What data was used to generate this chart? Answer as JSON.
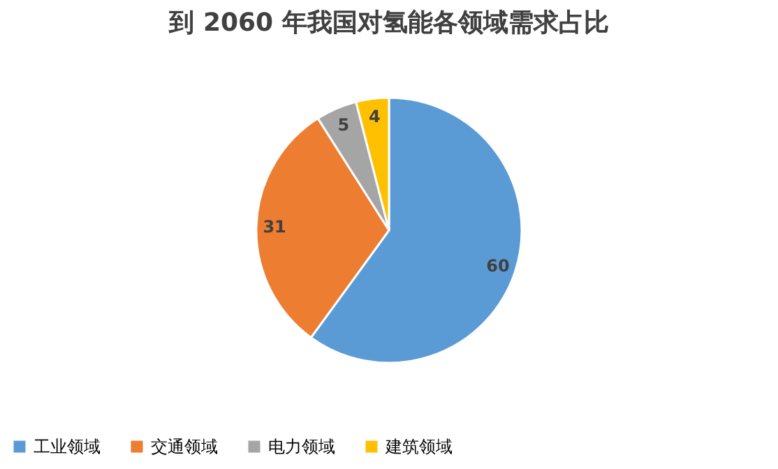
{
  "chart_data": {
    "type": "pie",
    "title": "到 2060 年我国对氢能各领域需求占比",
    "categories": [
      "工业领域",
      "交通领域",
      "电力领域",
      "建筑领域"
    ],
    "values": [
      60,
      31,
      5,
      4
    ],
    "colors": [
      "#5b9bd5",
      "#ed7d31",
      "#a5a5a5",
      "#ffc000"
    ],
    "data_labels": true,
    "legend": "bottom"
  }
}
